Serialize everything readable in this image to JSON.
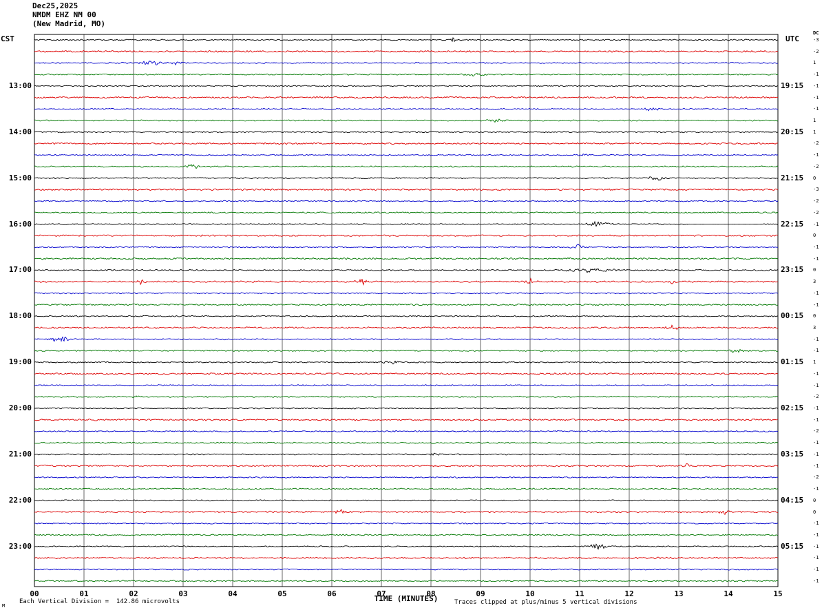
{
  "title": {
    "date": "Dec25,2025",
    "station": "NMDM EHZ NM 00",
    "location": "(New Madrid, MO)"
  },
  "left_axis": {
    "header": "CST"
  },
  "right_axis": {
    "header": "UTC",
    "dc_header": "DC"
  },
  "x_axis": {
    "title": "TIME (MINUTES)",
    "ticks": [
      "00",
      "01",
      "02",
      "03",
      "04",
      "05",
      "06",
      "07",
      "08",
      "09",
      "10",
      "11",
      "12",
      "13",
      "14",
      "15"
    ]
  },
  "footer": {
    "left": "Each Vertical Division =  142.86 microvolts",
    "right": "Traces clipped at plus/minus 5 vertical divisions",
    "corner_mark": "M"
  },
  "chart_data": {
    "type": "line",
    "subtype": "helicorder-seismogram",
    "x_range_minutes": [
      0,
      15
    ],
    "minutes_per_line": 15,
    "grid": "vertical-per-minute",
    "trace_colors_cycle": [
      "#000000",
      "#dd0000",
      "#0000cc",
      "#007700"
    ],
    "rows": [
      {
        "c": "#000000",
        "cst": "",
        "utc": "",
        "dc": "-3",
        "n": 1.0,
        "ev": [
          {
            "t": 8.45,
            "a": 9,
            "w": 0.04
          }
        ]
      },
      {
        "c": "#dd0000",
        "cst": "",
        "utc": "",
        "dc": "-2",
        "n": 1.3,
        "ev": []
      },
      {
        "c": "#0000cc",
        "cst": "",
        "utc": "",
        "dc": "1",
        "n": 1.0,
        "ev": [
          {
            "t": 2.35,
            "a": 3.5,
            "w": 0.22
          },
          {
            "t": 2.85,
            "a": 2,
            "w": 0.12
          }
        ]
      },
      {
        "c": "#007700",
        "cst": "",
        "utc": "",
        "dc": "-1",
        "n": 1.1,
        "ev": [
          {
            "t": 8.9,
            "a": 1.8,
            "w": 0.2
          }
        ]
      },
      {
        "c": "#000000",
        "cst": "13:00",
        "utc": "19:15",
        "dc": "-1",
        "n": 1.0,
        "ev": []
      },
      {
        "c": "#dd0000",
        "cst": "",
        "utc": "",
        "dc": "-1",
        "n": 1.3,
        "ev": []
      },
      {
        "c": "#0000cc",
        "cst": "",
        "utc": "",
        "dc": "-1",
        "n": 1.0,
        "ev": [
          {
            "t": 12.45,
            "a": 3,
            "w": 0.12
          }
        ]
      },
      {
        "c": "#007700",
        "cst": "",
        "utc": "",
        "dc": "1",
        "n": 1.1,
        "ev": [
          {
            "t": 9.3,
            "a": 2.5,
            "w": 0.12
          }
        ]
      },
      {
        "c": "#000000",
        "cst": "14:00",
        "utc": "20:15",
        "dc": "1",
        "n": 1.0,
        "ev": []
      },
      {
        "c": "#dd0000",
        "cst": "",
        "utc": "",
        "dc": "-2",
        "n": 1.3,
        "ev": []
      },
      {
        "c": "#0000cc",
        "cst": "",
        "utc": "",
        "dc": "-1",
        "n": 1.0,
        "ev": [
          {
            "t": 11.1,
            "a": 2,
            "w": 0.1
          }
        ]
      },
      {
        "c": "#007700",
        "cst": "",
        "utc": "",
        "dc": "-2",
        "n": 1.1,
        "ev": [
          {
            "t": 3.2,
            "a": 3.5,
            "w": 0.1
          }
        ]
      },
      {
        "c": "#000000",
        "cst": "15:00",
        "utc": "21:15",
        "dc": "0",
        "n": 1.0,
        "ev": [
          {
            "t": 12.55,
            "a": 4,
            "w": 0.12
          }
        ]
      },
      {
        "c": "#dd0000",
        "cst": "",
        "utc": "",
        "dc": "-3",
        "n": 1.3,
        "ev": []
      },
      {
        "c": "#0000cc",
        "cst": "",
        "utc": "",
        "dc": "-2",
        "n": 1.0,
        "ev": []
      },
      {
        "c": "#007700",
        "cst": "",
        "utc": "",
        "dc": "-2",
        "n": 1.1,
        "ev": []
      },
      {
        "c": "#000000",
        "cst": "16:00",
        "utc": "22:15",
        "dc": "-1",
        "n": 1.0,
        "ev": [
          {
            "t": 11.35,
            "a": 4,
            "w": 0.18
          },
          {
            "type": "flat",
            "start": 13.2,
            "end": 14.7
          }
        ]
      },
      {
        "c": "#dd0000",
        "cst": "",
        "utc": "",
        "dc": "0",
        "n": 1.3,
        "ev": []
      },
      {
        "c": "#0000cc",
        "cst": "",
        "utc": "",
        "dc": "-1",
        "n": 1.0,
        "ev": [
          {
            "t": 10.95,
            "a": 4,
            "w": 0.12
          }
        ]
      },
      {
        "c": "#007700",
        "cst": "",
        "utc": "",
        "dc": "-1",
        "n": 1.4,
        "ev": []
      },
      {
        "c": "#000000",
        "cst": "17:00",
        "utc": "23:15",
        "dc": "0",
        "n": 1.1,
        "ev": [
          {
            "t": 11.2,
            "a": 2.5,
            "w": 0.4
          }
        ]
      },
      {
        "c": "#dd0000",
        "cst": "",
        "utc": "",
        "dc": "3",
        "n": 1.3,
        "ev": [
          {
            "t": 2.15,
            "a": 4,
            "w": 0.06
          },
          {
            "t": 6.6,
            "a": 5,
            "w": 0.1
          },
          {
            "t": 10.0,
            "a": 4.5,
            "w": 0.08
          },
          {
            "t": 12.85,
            "a": 3,
            "w": 0.06
          }
        ]
      },
      {
        "c": "#0000cc",
        "cst": "",
        "utc": "",
        "dc": "-1",
        "n": 1.0,
        "ev": []
      },
      {
        "c": "#007700",
        "cst": "",
        "utc": "",
        "dc": "-1",
        "n": 1.2,
        "ev": []
      },
      {
        "c": "#000000",
        "cst": "18:00",
        "utc": "00:15",
        "dc": "0",
        "n": 1.0,
        "ev": []
      },
      {
        "c": "#dd0000",
        "cst": "",
        "utc": "",
        "dc": "3",
        "n": 1.3,
        "ev": [
          {
            "t": 12.85,
            "a": 4,
            "w": 0.1
          }
        ]
      },
      {
        "c": "#0000cc",
        "cst": "",
        "utc": "",
        "dc": "-1",
        "n": 1.0,
        "ev": [
          {
            "t": 0.5,
            "a": 6,
            "w": 0.15
          }
        ]
      },
      {
        "c": "#007700",
        "cst": "",
        "utc": "",
        "dc": "-1",
        "n": 1.1,
        "ev": [
          {
            "t": 14.1,
            "a": 3,
            "w": 0.15
          }
        ]
      },
      {
        "c": "#000000",
        "cst": "19:00",
        "utc": "01:15",
        "dc": "1",
        "n": 1.0,
        "ev": [
          {
            "t": 7.2,
            "a": 2,
            "w": 0.2
          }
        ]
      },
      {
        "c": "#dd0000",
        "cst": "",
        "utc": "",
        "dc": "-1",
        "n": 1.3,
        "ev": []
      },
      {
        "c": "#0000cc",
        "cst": "",
        "utc": "",
        "dc": "-1",
        "n": 1.0,
        "ev": []
      },
      {
        "c": "#007700",
        "cst": "",
        "utc": "",
        "dc": "-2",
        "n": 1.1,
        "ev": [
          {
            "t": 2.0,
            "a": 2.5,
            "w": 0.06
          }
        ]
      },
      {
        "c": "#000000",
        "cst": "20:00",
        "utc": "02:15",
        "dc": "-1",
        "n": 1.0,
        "ev": []
      },
      {
        "c": "#dd0000",
        "cst": "",
        "utc": "",
        "dc": "-1",
        "n": 1.3,
        "ev": []
      },
      {
        "c": "#0000cc",
        "cst": "",
        "utc": "",
        "dc": "-2",
        "n": 1.0,
        "ev": []
      },
      {
        "c": "#007700",
        "cst": "",
        "utc": "",
        "dc": "-1",
        "n": 1.1,
        "ev": []
      },
      {
        "c": "#000000",
        "cst": "21:00",
        "utc": "03:15",
        "dc": "-1",
        "n": 1.0,
        "ev": [
          {
            "t": 8.05,
            "a": 2,
            "w": 0.08
          }
        ]
      },
      {
        "c": "#dd0000",
        "cst": "",
        "utc": "",
        "dc": "-1",
        "n": 1.3,
        "ev": [
          {
            "t": 13.15,
            "a": 2.5,
            "w": 0.06
          }
        ]
      },
      {
        "c": "#0000cc",
        "cst": "",
        "utc": "",
        "dc": "-2",
        "n": 1.0,
        "ev": []
      },
      {
        "c": "#007700",
        "cst": "",
        "utc": "",
        "dc": "-1",
        "n": 1.1,
        "ev": []
      },
      {
        "c": "#000000",
        "cst": "22:00",
        "utc": "04:15",
        "dc": "0",
        "n": 1.0,
        "ev": []
      },
      {
        "c": "#dd0000",
        "cst": "",
        "utc": "",
        "dc": "0",
        "n": 1.3,
        "ev": [
          {
            "t": 6.15,
            "a": 5,
            "w": 0.07
          },
          {
            "t": 13.9,
            "a": 5,
            "w": 0.07
          }
        ]
      },
      {
        "c": "#0000cc",
        "cst": "",
        "utc": "",
        "dc": "-1",
        "n": 1.0,
        "ev": []
      },
      {
        "c": "#007700",
        "cst": "",
        "utc": "",
        "dc": "-1",
        "n": 1.1,
        "ev": []
      },
      {
        "c": "#000000",
        "cst": "23:00",
        "utc": "05:15",
        "dc": "-1",
        "n": 1.0,
        "ev": [
          {
            "t": 11.35,
            "a": 5,
            "w": 0.15
          }
        ]
      },
      {
        "c": "#dd0000",
        "cst": "",
        "utc": "",
        "dc": "-1",
        "n": 1.3,
        "ev": []
      },
      {
        "c": "#0000cc",
        "cst": "",
        "utc": "",
        "dc": "-1",
        "n": 1.0,
        "ev": []
      },
      {
        "c": "#007700",
        "cst": "",
        "utc": "",
        "dc": "-1",
        "n": 1.1,
        "ev": []
      }
    ]
  }
}
